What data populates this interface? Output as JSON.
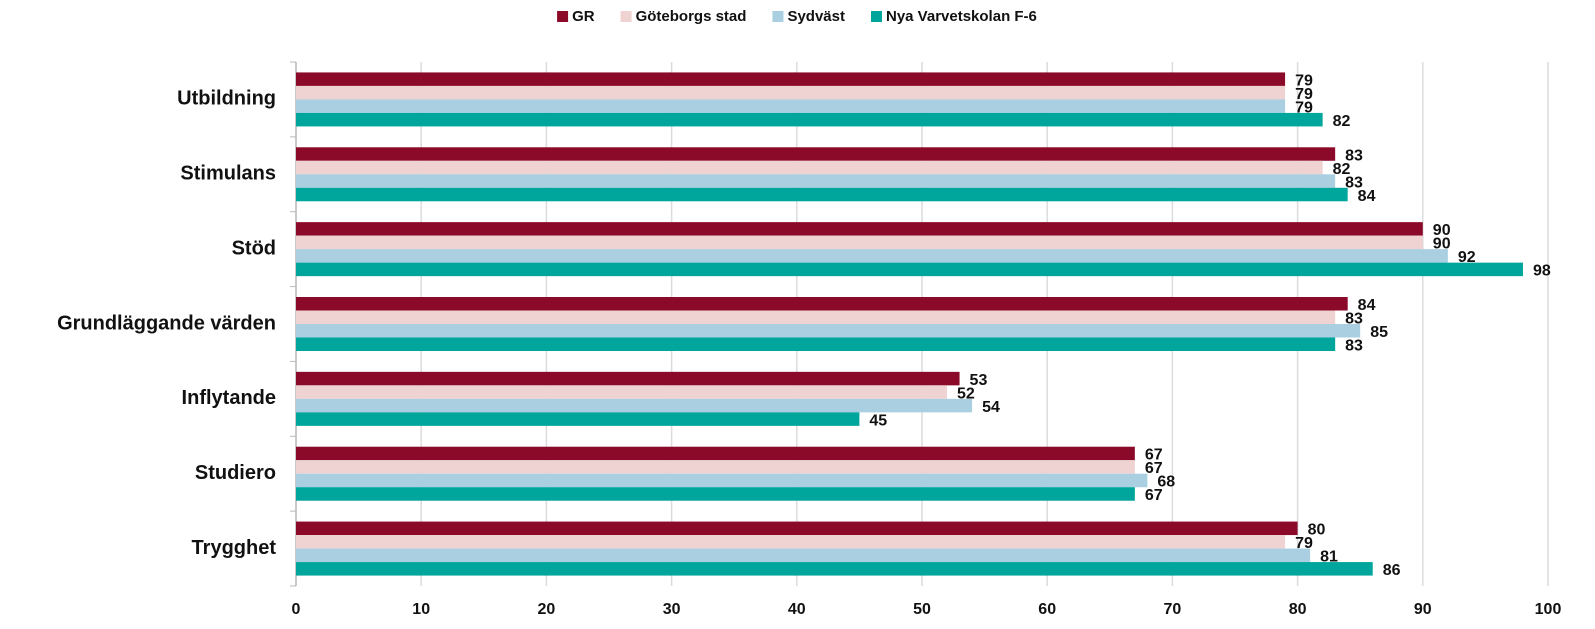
{
  "chart_data": {
    "type": "bar",
    "orientation": "horizontal",
    "categories": [
      "Utbildning",
      "Stimulans",
      "Stöd",
      "Grundläggande värden",
      "Inflytande",
      "Studiero",
      "Trygghet"
    ],
    "series": [
      {
        "name": "GR",
        "color": "#8b0a2a",
        "values": [
          79,
          83,
          90,
          84,
          53,
          67,
          80
        ]
      },
      {
        "name": "Göteborgs stad",
        "color": "#efd2d2",
        "values": [
          79,
          82,
          90,
          83,
          52,
          67,
          79
        ]
      },
      {
        "name": "Sydväst",
        "color": "#a9cfe1",
        "values": [
          79,
          83,
          92,
          85,
          54,
          68,
          81
        ]
      },
      {
        "name": "Nya Varvetskolan F-6",
        "color": "#00a59b",
        "values": [
          82,
          84,
          98,
          83,
          45,
          67,
          86
        ]
      }
    ],
    "xlim": [
      0,
      100
    ],
    "xticks": [
      0,
      10,
      20,
      30,
      40,
      50,
      60,
      70,
      80,
      90,
      100
    ],
    "grid": true,
    "legend": "top"
  }
}
